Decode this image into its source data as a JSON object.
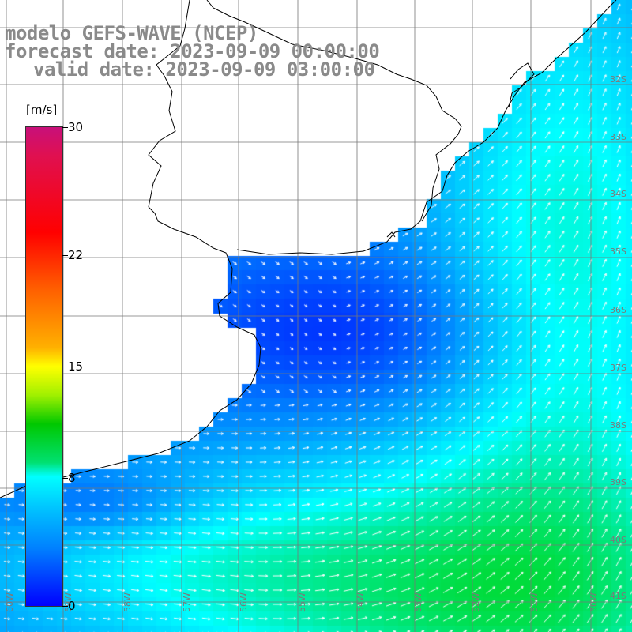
{
  "header": {
    "model": "modelo GEFS-WAVE (NCEP)",
    "forecast": "forecast date: 2023-09-09 00:00:00",
    "valid": "valid date: 2023-09-09 03:00:00"
  },
  "colorbar": {
    "unit": "[m/s]",
    "ticks": [
      {
        "label": "30",
        "value": 30
      },
      {
        "label": "22",
        "value": 22
      },
      {
        "label": "15",
        "value": 15
      },
      {
        "label": "8",
        "value": 8
      },
      {
        "label": "0",
        "value": 0
      }
    ],
    "range": [
      0,
      30
    ],
    "colors": [
      "#0000ff",
      "#0040ff",
      "#0080ff",
      "#00c0ff",
      "#00ffff",
      "#00e070",
      "#00c800",
      "#a0f000",
      "#ffff00",
      "#ffb000",
      "#ff6000",
      "#ff0000",
      "#e01050",
      "#c8107a"
    ]
  },
  "map": {
    "lat_labels": [
      "32S",
      "33S",
      "34S",
      "35S",
      "36S",
      "37S",
      "38S",
      "39S",
      "40S",
      "41S"
    ],
    "lon_labels": [
      "60W",
      "59W",
      "58W",
      "57W",
      "56W",
      "55W",
      "54W",
      "53W",
      "52W",
      "51W",
      "50W"
    ],
    "grid": true,
    "arrow_color": "#ffffff",
    "coast_color": "#000000",
    "land_color": "#ffffff"
  }
}
